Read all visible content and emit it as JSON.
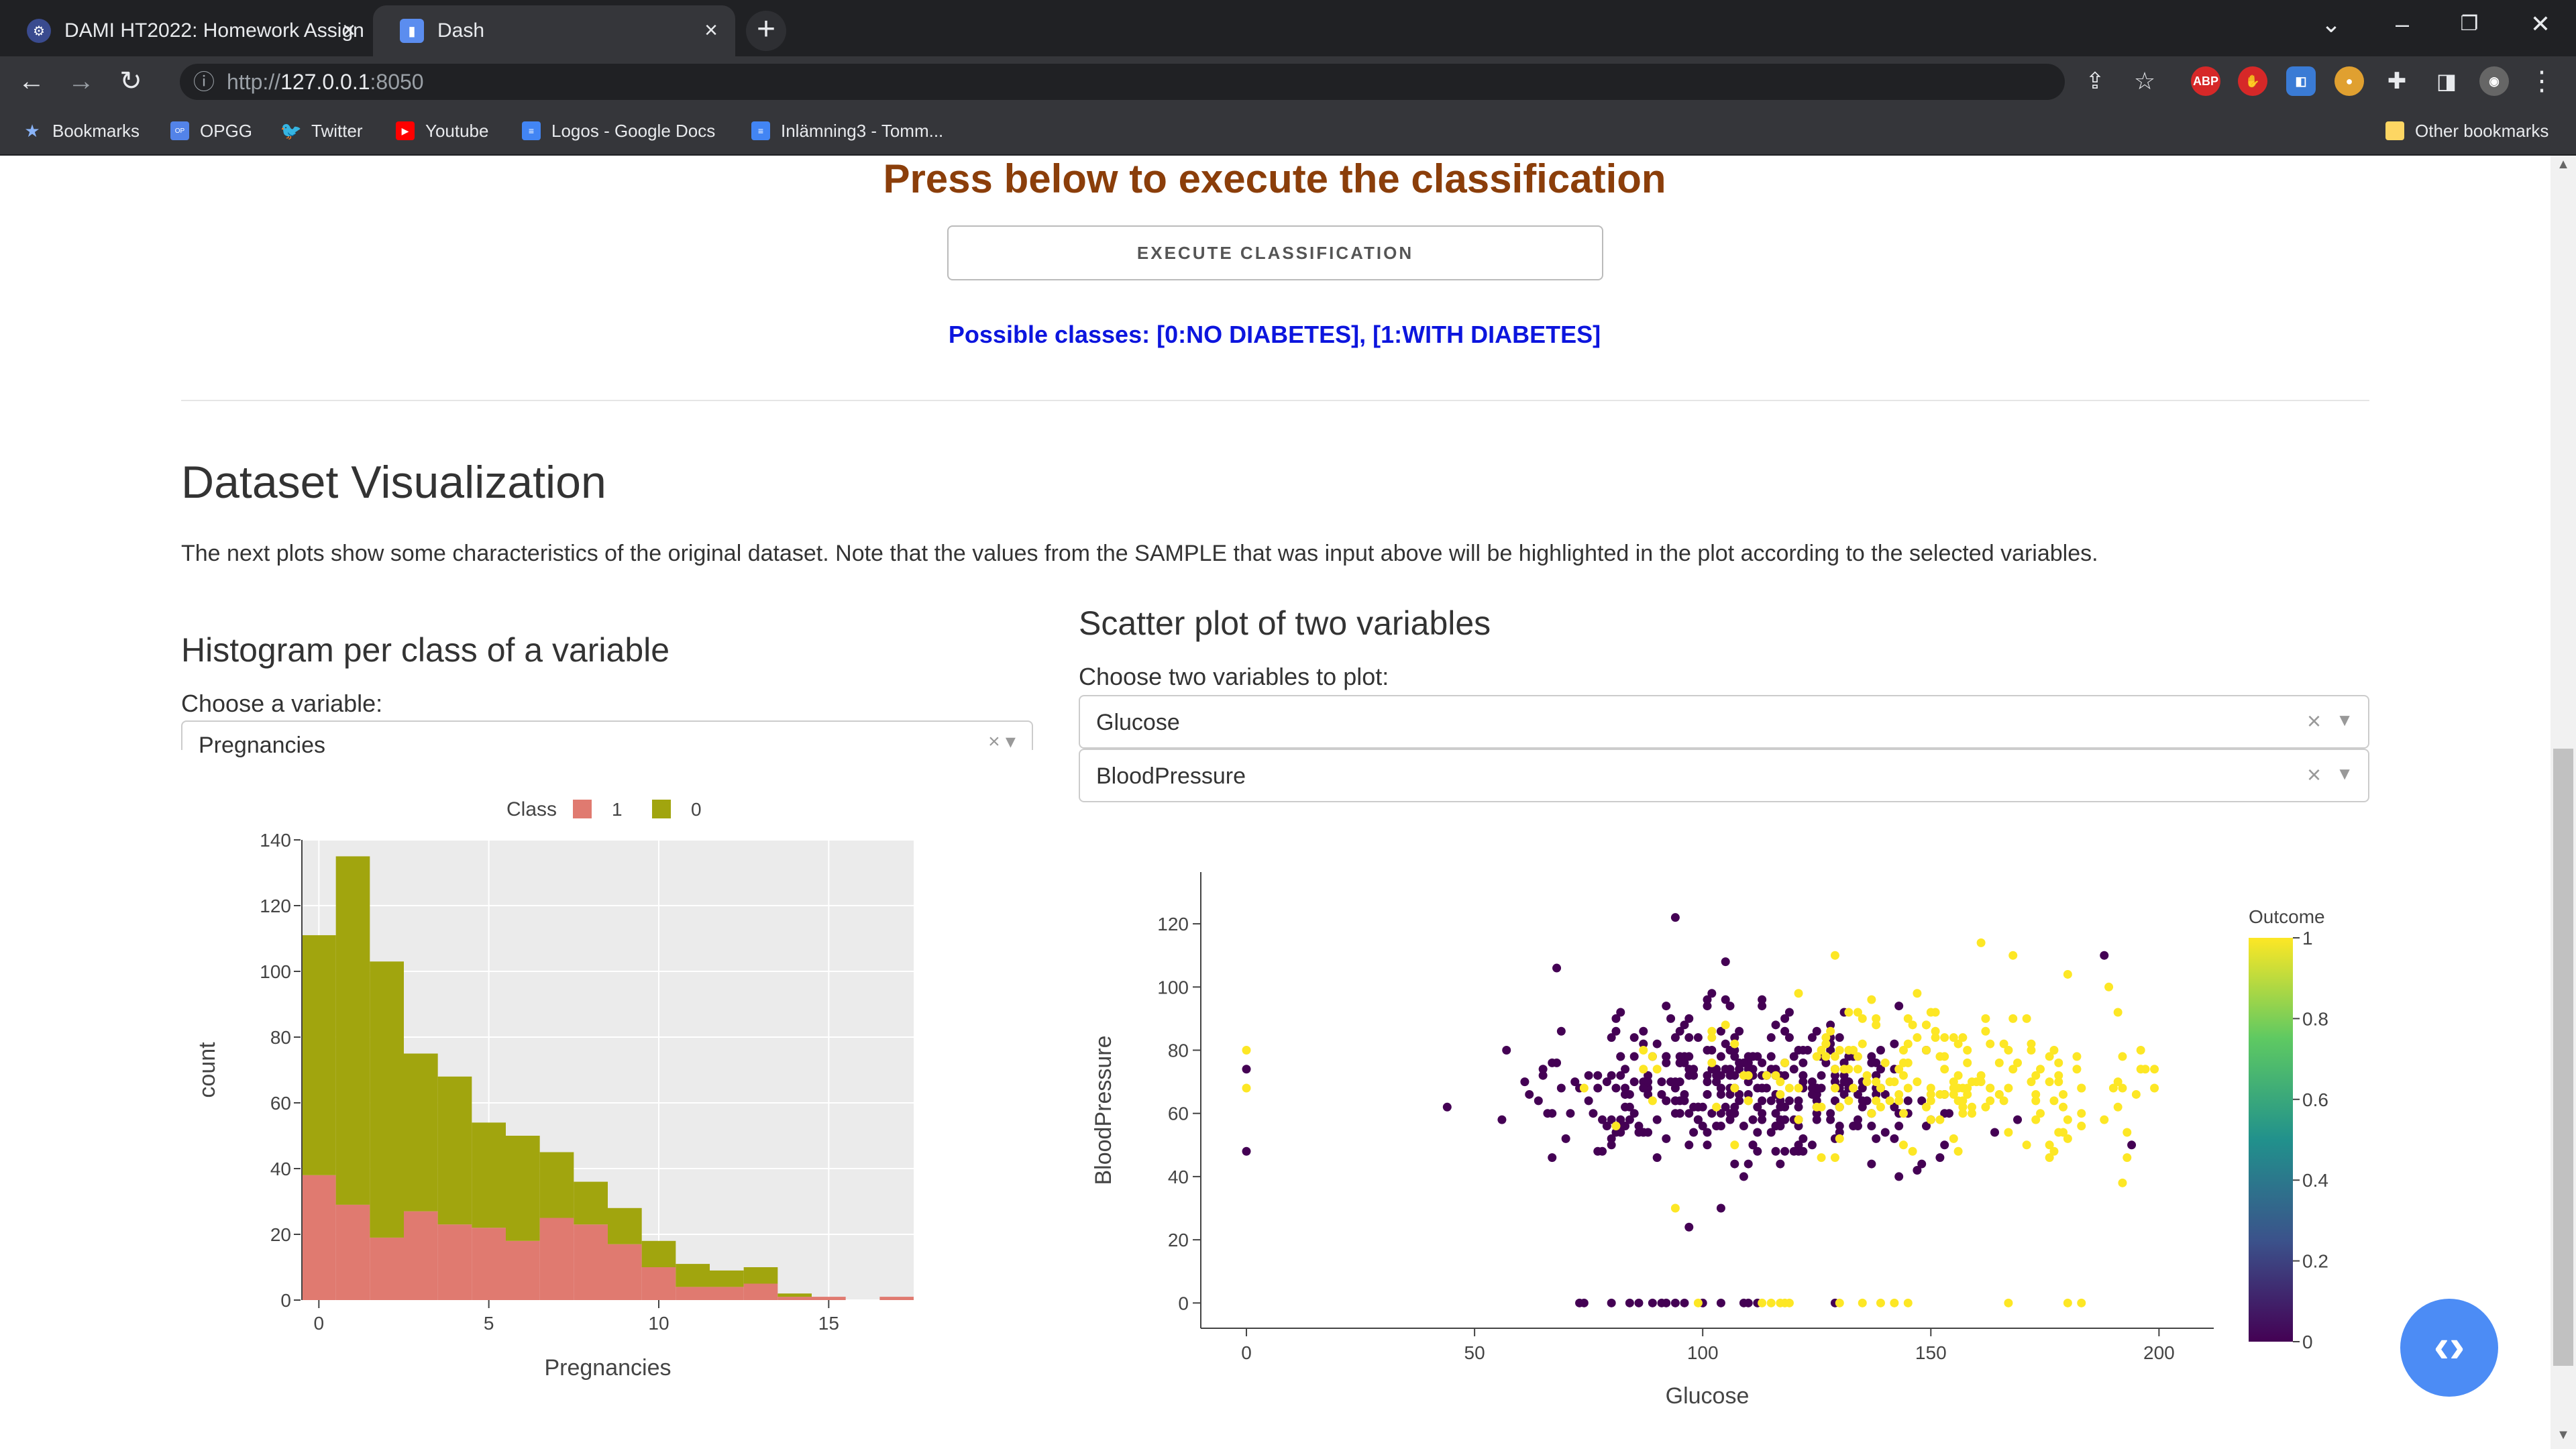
{
  "browser": {
    "tabs": [
      {
        "title": "DAMI HT2022: Homework Assign",
        "active": false
      },
      {
        "title": "Dash",
        "active": true
      }
    ],
    "url_scheme": "http://",
    "url_host": "127.0.0.1",
    "url_port": ":8050",
    "extensions": [
      "ABP"
    ],
    "bookmarks": [
      "Bookmarks",
      "OPGG",
      "Twitter",
      "Youtube",
      "Logos - Google Docs",
      "Inlämning3 - Tomm...",
      "Other bookmarks"
    ]
  },
  "execute": {
    "title": "Press below to execute the classification",
    "button": "EXECUTE CLASSIFICATION",
    "classes": "Possible classes: [0:NO DIABETES], [1:WITH DIABETES]"
  },
  "viz": {
    "title": "Dataset Visualization",
    "description": "The next plots show some characteristics of the original dataset. Note that the values from the SAMPLE that was input above will be highlighted in the plot according to the selected variables."
  },
  "histogram": {
    "title": "Histogram per class of a variable",
    "choose_label": "Choose a variable:",
    "selected": "Pregnancies"
  },
  "scatter": {
    "title": "Scatter plot of two variables",
    "choose_label": "Choose two variables to plot:",
    "var_x": "Glucose",
    "var_y": "BloodPressure"
  },
  "colors": {
    "class1": "#e07a70",
    "class0": "#a1a50e",
    "title": "#8b3e0a",
    "classes_text": "#0c15de"
  },
  "chart_data": [
    {
      "type": "bar",
      "mode": "stacked-histogram",
      "xlabel": "Pregnancies",
      "ylabel": "count",
      "legend_title": "Class",
      "legend_position": "top",
      "x": [
        0,
        1,
        2,
        3,
        4,
        5,
        6,
        7,
        8,
        9,
        10,
        11,
        12,
        13,
        14,
        15,
        16,
        17
      ],
      "xticks": [
        0,
        5,
        10,
        15
      ],
      "yticks": [
        0,
        20,
        40,
        60,
        80,
        100,
        120,
        140
      ],
      "ylim": [
        0,
        140
      ],
      "grid": true,
      "series": [
        {
          "name": "1",
          "values": [
            38,
            29,
            19,
            27,
            23,
            22,
            18,
            25,
            23,
            17,
            10,
            4,
            4,
            5,
            1,
            1,
            0,
            1
          ],
          "color": "#e07a70"
        },
        {
          "name": "0",
          "values": [
            73,
            106,
            84,
            48,
            45,
            32,
            32,
            20,
            13,
            11,
            8,
            7,
            5,
            5,
            1,
            0,
            0,
            0
          ],
          "color": "#a1a50e"
        }
      ]
    },
    {
      "type": "scatter",
      "xlabel": "Glucose",
      "ylabel": "BloodPressure",
      "xticks": [
        0,
        50,
        100,
        150,
        200
      ],
      "yticks": [
        0,
        20,
        40,
        60,
        80,
        100,
        120
      ],
      "xlim": [
        -10,
        212
      ],
      "ylim": [
        -8,
        130
      ],
      "colorbar_title": "Outcome",
      "colorbar_ticks": [
        "0",
        "0.2",
        "0.4",
        "0.6",
        "0.8",
        "1"
      ],
      "colorscale": [
        "#440154",
        "#3b528b",
        "#21918c",
        "#5ec962",
        "#fde725"
      ],
      "series": [
        {
          "name": "0",
          "color": "#440154",
          "n": 360,
          "x_center": 108,
          "x_sd": 22,
          "y_center": 68,
          "y_sd": 11,
          "extra_points": [
            [
              0,
              74
            ],
            [
              0,
              48
            ],
            [
              44,
              62
            ],
            [
              68,
              106
            ],
            [
              94,
              122
            ],
            [
              104,
              30
            ],
            [
              97,
              24
            ],
            [
              105,
              108
            ],
            [
              101,
              96
            ],
            [
              188,
              110
            ],
            [
              194,
              50
            ],
            [
              57,
              80
            ],
            [
              56,
              58
            ]
          ],
          "zero_bp_glucose": [
            73,
            74,
            80,
            84,
            86,
            89,
            91,
            92,
            94,
            96,
            100,
            104,
            109,
            110,
            112,
            129
          ]
        },
        {
          "name": "1",
          "color": "#fde725",
          "n": 200,
          "x_center": 150,
          "x_sd": 28,
          "y_center": 72,
          "y_sd": 11,
          "extra_points": [
            [
              0,
              80
            ],
            [
              0,
              68
            ],
            [
              94,
              30
            ],
            [
              168,
              110
            ],
            [
              161,
              114
            ],
            [
              129,
              110
            ],
            [
              180,
              104
            ],
            [
              172,
              70
            ]
          ],
          "zero_bp_glucose": [
            99,
            113,
            115,
            117,
            118,
            119,
            130,
            135,
            139,
            142,
            145,
            167,
            180,
            183
          ]
        }
      ]
    }
  ]
}
